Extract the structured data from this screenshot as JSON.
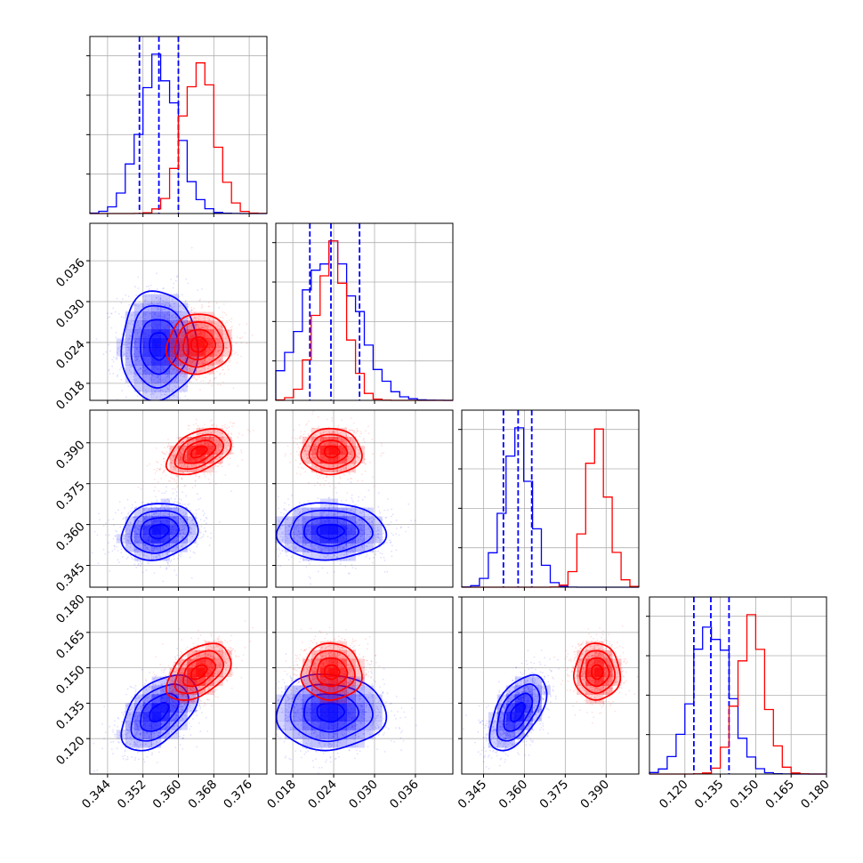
{
  "figure": {
    "type": "corner_plot",
    "colors": {
      "set_a": "#0000ff",
      "set_b": "#ff0000",
      "grid": "#b0b0b0"
    }
  },
  "chart_data": {
    "type": "corner",
    "grid": true,
    "parameters": [
      {
        "range": [
          0.34,
          0.38
        ],
        "ticks": [
          "0.344",
          "0.352",
          "0.360",
          "0.368",
          "0.376"
        ]
      },
      {
        "range": [
          0.0155,
          0.0415
        ],
        "ticks": [
          "0.018",
          "0.024",
          "0.030",
          "0.036"
        ]
      },
      {
        "range": [
          0.337,
          0.402
        ],
        "ticks": [
          "0.345",
          "0.360",
          "0.375",
          "0.390"
        ]
      },
      {
        "range": [
          0.105,
          0.18
        ],
        "ticks": [
          "0.120",
          "0.135",
          "0.150",
          "0.165",
          "0.180"
        ]
      }
    ],
    "series": [
      {
        "color": "#0000ff",
        "means": [
          0.3556,
          0.0235,
          0.3575,
          0.1312
        ],
        "stds": [
          0.0043,
          0.004,
          0.0052,
          0.008
        ],
        "correlations": {
          "0-1": 0.0,
          "0-2": 0.15,
          "0-3": 0.5,
          "1-2": 0.0,
          "1-3": 0.0,
          "2-3": 0.55
        },
        "quantile_lines": [
          [
            0.3512,
            0.3556,
            0.36
          ],
          [
            0.0205,
            0.0236,
            0.0278
          ],
          [
            0.3523,
            0.3577,
            0.3627
          ],
          [
            0.1238,
            0.131,
            0.1387
          ]
        ]
      },
      {
        "color": "#ff0000",
        "means": [
          0.3646,
          0.0237,
          0.3867,
          0.1482
        ],
        "stds": [
          0.0036,
          0.0022,
          0.0042,
          0.006
        ],
        "correlations": {
          "0-1": 0.05,
          "0-2": 0.45,
          "0-3": 0.45,
          "1-2": 0.0,
          "1-3": 0.0,
          "2-3": 0.0
        },
        "quantile_lines": []
      }
    ],
    "histogram_bins": 20,
    "contour_levels_sigma": [
      0.5,
      1.0,
      1.5,
      2.0
    ]
  }
}
